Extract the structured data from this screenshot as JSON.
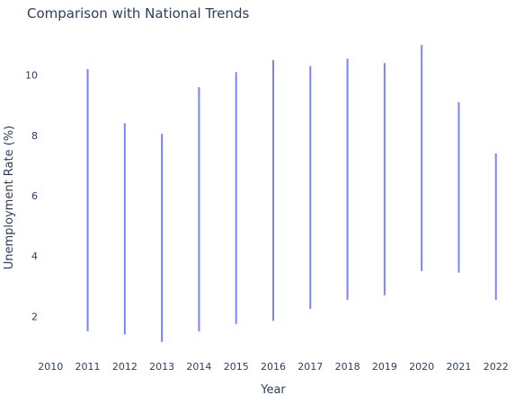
{
  "chart_data": {
    "type": "range",
    "title": "Comparison with National Trends",
    "xlabel": "Year",
    "ylabel": "Unemployment Rate (%)",
    "x_ticks": [
      "2010",
      "2011",
      "2012",
      "2013",
      "2014",
      "2015",
      "2016",
      "2017",
      "2018",
      "2019",
      "2020",
      "2021",
      "2022"
    ],
    "y_ticks": [
      "2",
      "4",
      "6",
      "8",
      "10"
    ],
    "ylim": [
      0.7,
      11.3
    ],
    "xlim": [
      2009.8,
      2022.2
    ],
    "grid": false,
    "color": "#636efa",
    "series": [
      {
        "x": [
          2011,
          2012,
          2013,
          2014,
          2015,
          2016,
          2017,
          2018,
          2019,
          2020,
          2021,
          2022
        ],
        "low": [
          1.5,
          1.4,
          1.15,
          1.5,
          1.75,
          1.85,
          2.25,
          2.55,
          2.7,
          3.5,
          3.45,
          2.55
        ],
        "high": [
          10.2,
          8.4,
          8.05,
          9.6,
          10.1,
          10.5,
          10.3,
          10.55,
          10.4,
          11.0,
          9.1,
          7.4
        ]
      }
    ]
  }
}
